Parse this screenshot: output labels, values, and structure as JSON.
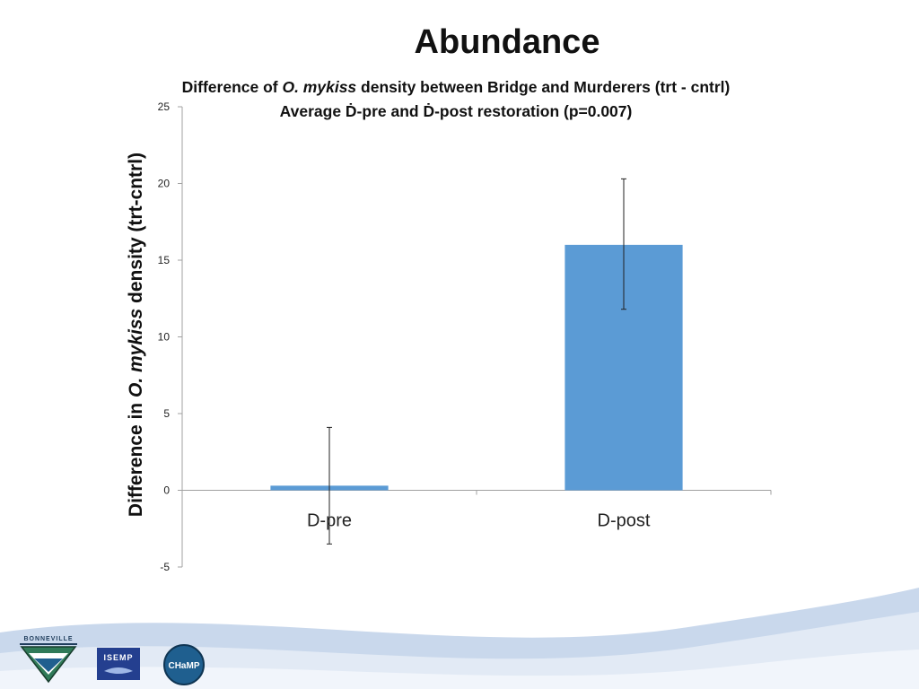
{
  "slide": {
    "title": "Abundance"
  },
  "chart_data": {
    "type": "bar",
    "title_parts": {
      "before": "Difference of ",
      "italic": "O. mykiss",
      "after": " density between Bridge and Murderers (trt - cntrl)"
    },
    "subtitle": "Average Ḋ-pre and Ḋ-post restoration (p=0.007)",
    "ylabel_parts": {
      "before": "Difference in ",
      "italic": "O. mykiss",
      "after": " density (trt-cntrl)"
    },
    "xlabel": "",
    "categories": [
      "D-pre",
      "D-post"
    ],
    "values": [
      0.3,
      16.0
    ],
    "error": [
      {
        "low": -3.5,
        "high": 4.1
      },
      {
        "low": 11.8,
        "high": 20.3
      }
    ],
    "ylim": [
      -5,
      25
    ],
    "yticks": [
      -5,
      0,
      5,
      10,
      15,
      20,
      25
    ],
    "bar_color": "#5b9bd5",
    "grid": false,
    "legend": "none"
  },
  "logos": {
    "bonneville": "BONNEVILLE",
    "isemp": "ISEMP",
    "champ": "CHaMP"
  }
}
